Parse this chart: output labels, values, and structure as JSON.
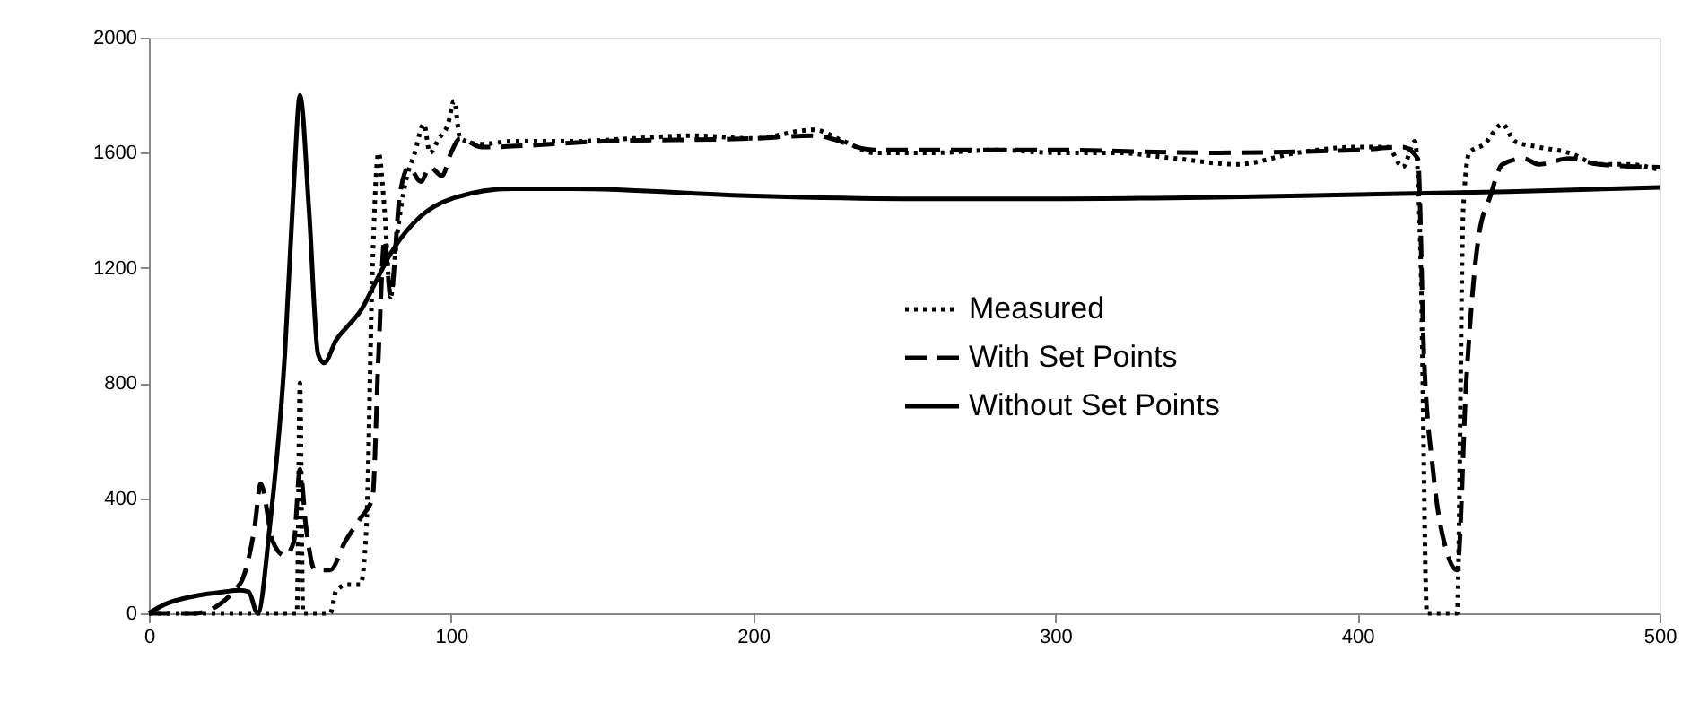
{
  "chart_data": {
    "type": "line",
    "xlim": [
      0,
      500
    ],
    "xticks": [
      0,
      100,
      200,
      300,
      400,
      500
    ],
    "ylim": [
      0,
      2000
    ],
    "yticks": [
      0,
      400,
      800,
      1200,
      1600,
      2000
    ],
    "grid": false,
    "legend": "center",
    "marker": "none",
    "series": [
      {
        "name": "Measured",
        "color": "#000000",
        "line_style": "dotted",
        "x": [
          0,
          20,
          49,
          50,
          51,
          55,
          60,
          62,
          66,
          70,
          72,
          74,
          76,
          78,
          80,
          82,
          85,
          88,
          91,
          93,
          96,
          99,
          101,
          103,
          110,
          120,
          140,
          160,
          180,
          200,
          220,
          230,
          240,
          260,
          280,
          300,
          320,
          340,
          360,
          380,
          400,
          410,
          415,
          419,
          421,
          423,
          433,
          435,
          437,
          442,
          448,
          452,
          460,
          470,
          480,
          490,
          500
        ],
        "values": [
          0,
          0,
          0,
          800,
          0,
          0,
          0,
          80,
          100,
          100,
          300,
          1200,
          1600,
          1400,
          1100,
          1300,
          1500,
          1600,
          1700,
          1600,
          1650,
          1700,
          1780,
          1650,
          1630,
          1640,
          1640,
          1650,
          1660,
          1650,
          1680,
          1640,
          1600,
          1600,
          1610,
          1600,
          1600,
          1580,
          1560,
          1600,
          1620,
          1620,
          1550,
          1640,
          1200,
          0,
          0,
          1400,
          1600,
          1630,
          1700,
          1640,
          1620,
          1600,
          1560,
          1560,
          1540
        ]
      },
      {
        "name": "With Set Points",
        "color": "#000000",
        "line_style": "dashed",
        "x": [
          0,
          15,
          30,
          35,
          37,
          41,
          45,
          48,
          50,
          52,
          55,
          60,
          65,
          70,
          74,
          76,
          78,
          80,
          83,
          86,
          90,
          93,
          97,
          100,
          103,
          110,
          150,
          200,
          220,
          240,
          300,
          350,
          400,
          415,
          420,
          422,
          425,
          430,
          433,
          436,
          440,
          444,
          448,
          455,
          460,
          470,
          480,
          500
        ],
        "values": [
          0,
          0,
          100,
          300,
          450,
          250,
          200,
          250,
          500,
          300,
          150,
          150,
          250,
          330,
          400,
          900,
          1300,
          1100,
          1450,
          1550,
          1500,
          1550,
          1520,
          1600,
          1650,
          1620,
          1640,
          1650,
          1660,
          1610,
          1610,
          1600,
          1610,
          1620,
          1580,
          900,
          500,
          200,
          150,
          800,
          1300,
          1450,
          1560,
          1580,
          1560,
          1580,
          1560,
          1550
        ]
      },
      {
        "name": "Without Set Points",
        "color": "#000000",
        "line_style": "solid",
        "x": [
          0,
          5,
          15,
          25,
          30,
          33,
          36,
          40,
          45,
          48,
          50,
          53,
          56,
          58,
          62,
          66,
          70,
          75,
          80,
          90,
          100,
          120,
          140,
          200,
          250,
          300,
          350,
          400,
          450,
          500
        ],
        "values": [
          0,
          30,
          60,
          75,
          80,
          75,
          0,
          300,
          900,
          1500,
          1800,
          1400,
          900,
          870,
          950,
          1000,
          1050,
          1150,
          1250,
          1380,
          1440,
          1475,
          1475,
          1450,
          1440,
          1440,
          1445,
          1455,
          1465,
          1480
        ]
      }
    ]
  }
}
